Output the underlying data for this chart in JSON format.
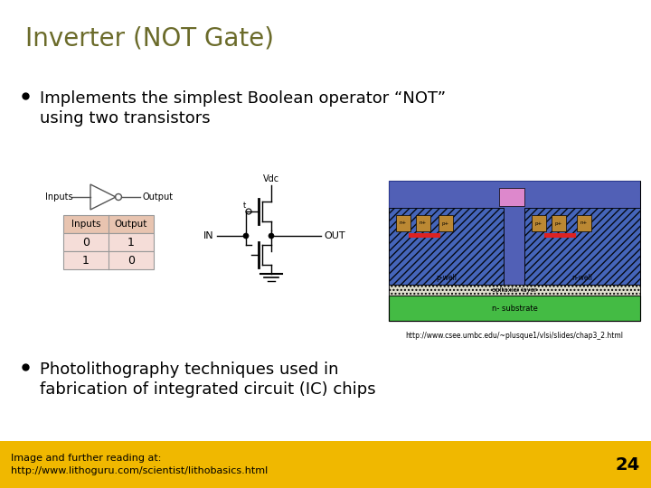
{
  "title": "Inverter (NOT Gate)",
  "title_color": "#6b6b2a",
  "title_fontsize": 20,
  "bullet1_line1": "Implements the simplest Boolean operator “NOT”",
  "bullet1_line2": "using two transistors",
  "bullet2_line1": "Photolithography techniques used in",
  "bullet2_line2": "fabrication of integrated circuit (IC) chips",
  "bullet_fontsize": 13,
  "footer_bg": "#f0b800",
  "footer_text1": "Image and further reading at:",
  "footer_text2": "http://www.lithoguru.com/scientist/lithobasics.html",
  "footer_fontsize": 8,
  "page_number": "24",
  "bg_color": "#ffffff",
  "circuit_url": "http://www.csee.umbc.edu/~plusque1/vlsi/slides/chap3_2.html"
}
